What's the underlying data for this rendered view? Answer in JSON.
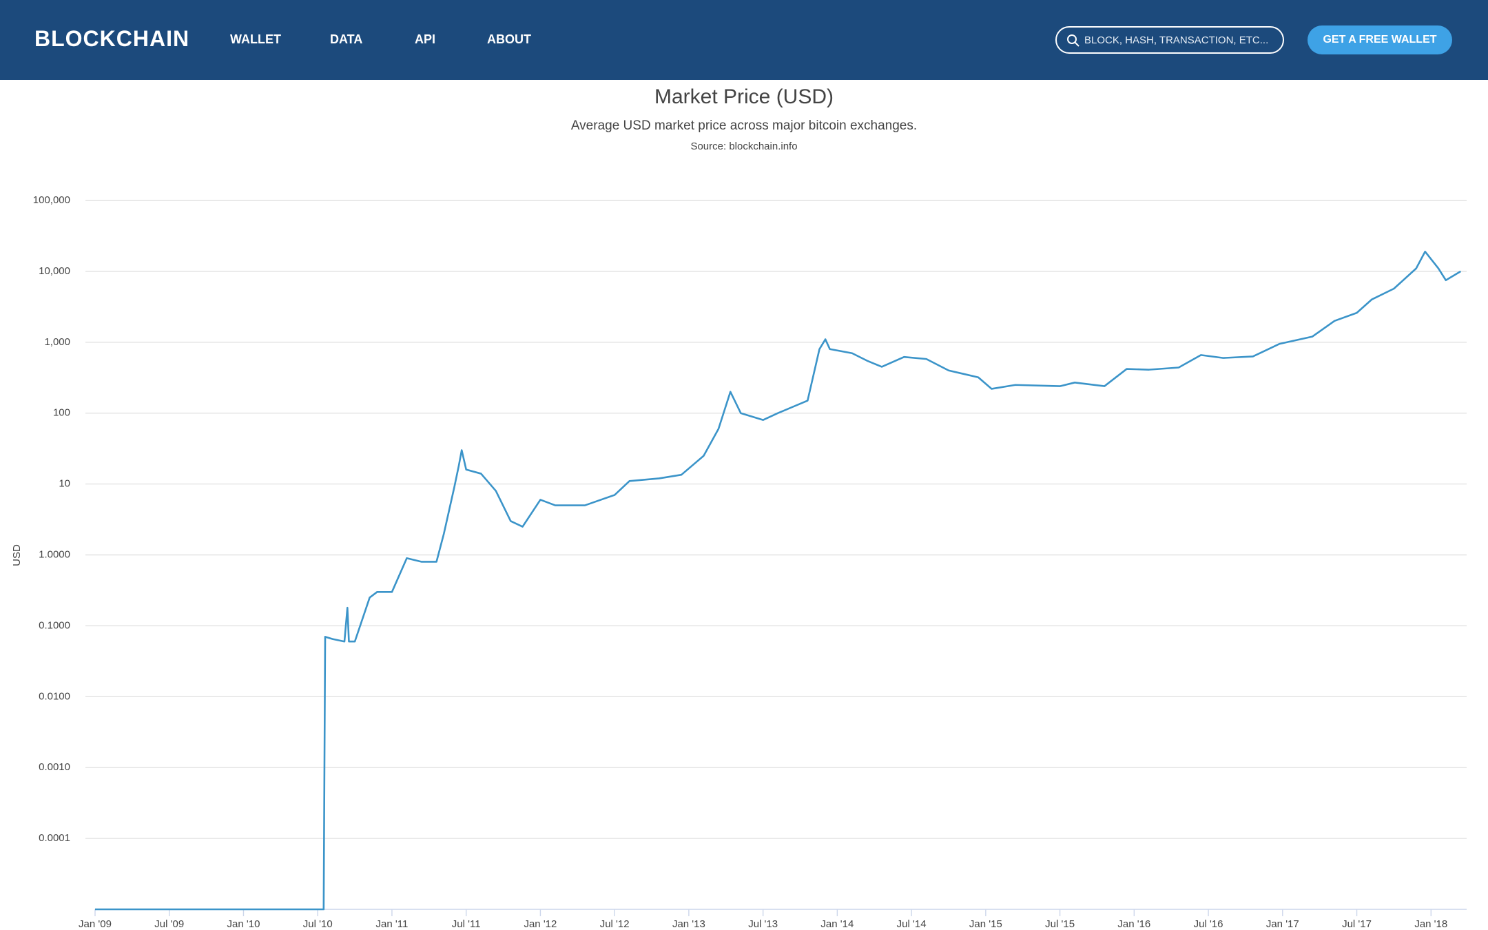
{
  "nav": {
    "logo": "BLOCKCHAIN",
    "links": [
      "WALLET",
      "DATA",
      "API",
      "ABOUT"
    ],
    "search_placeholder": "BLOCK, HASH, TRANSACTION, ETC...",
    "button": "GET A FREE WALLET"
  },
  "chart_data": {
    "type": "line",
    "title": "Market Price (USD)",
    "subtitle": "Average USD market price across major bitcoin exchanges.",
    "source": "Source: blockchain.info",
    "y_label": "USD",
    "log_scale": true,
    "grid": true,
    "color": "#3b94c9",
    "xlim": [
      2009.0,
      2018.24
    ],
    "ylim": [
      1e-05,
      100000
    ],
    "xticks": [
      {
        "value": 2009.0,
        "label": "Jan '09"
      },
      {
        "value": 2009.5,
        "label": "Jul '09"
      },
      {
        "value": 2010.0,
        "label": "Jan '10"
      },
      {
        "value": 2010.5,
        "label": "Jul '10"
      },
      {
        "value": 2011.0,
        "label": "Jan '11"
      },
      {
        "value": 2011.5,
        "label": "Jul '11"
      },
      {
        "value": 2012.0,
        "label": "Jan '12"
      },
      {
        "value": 2012.5,
        "label": "Jul '12"
      },
      {
        "value": 2013.0,
        "label": "Jan '13"
      },
      {
        "value": 2013.5,
        "label": "Jul '13"
      },
      {
        "value": 2014.0,
        "label": "Jan '14"
      },
      {
        "value": 2014.5,
        "label": "Jul '14"
      },
      {
        "value": 2015.0,
        "label": "Jan '15"
      },
      {
        "value": 2015.5,
        "label": "Jul '15"
      },
      {
        "value": 2016.0,
        "label": "Jan '16"
      },
      {
        "value": 2016.5,
        "label": "Jul '16"
      },
      {
        "value": 2017.0,
        "label": "Jan '17"
      },
      {
        "value": 2017.5,
        "label": "Jul '17"
      },
      {
        "value": 2018.0,
        "label": "Jan '18"
      }
    ],
    "yticks": [
      {
        "value": 0.0001,
        "label": "0.0001"
      },
      {
        "value": 0.001,
        "label": "0.0010"
      },
      {
        "value": 0.01,
        "label": "0.0100"
      },
      {
        "value": 0.1,
        "label": "0.1000"
      },
      {
        "value": 1,
        "label": "1.0000"
      },
      10,
      100,
      {
        "value": 1000,
        "label": "1,000"
      },
      {
        "value": 10000,
        "label": "10,000"
      },
      {
        "value": 100000,
        "label": "100,000"
      }
    ],
    "x": [
      2009.0,
      2010.54,
      2010.55,
      2010.6,
      2010.68,
      2010.7,
      2010.71,
      2010.75,
      2010.85,
      2010.9,
      2011.0,
      2011.1,
      2011.2,
      2011.3,
      2011.35,
      2011.42,
      2011.45,
      2011.47,
      2011.5,
      2011.6,
      2011.7,
      2011.8,
      2011.88,
      2012.0,
      2012.1,
      2012.3,
      2012.5,
      2012.6,
      2012.8,
      2012.95,
      2013.1,
      2013.2,
      2013.28,
      2013.35,
      2013.5,
      2013.6,
      2013.8,
      2013.88,
      2013.92,
      2013.95,
      2014.1,
      2014.2,
      2014.3,
      2014.45,
      2014.6,
      2014.75,
      2014.95,
      2015.04,
      2015.2,
      2015.5,
      2015.6,
      2015.8,
      2015.95,
      2016.1,
      2016.3,
      2016.45,
      2016.6,
      2016.8,
      2016.98,
      2017.2,
      2017.35,
      2017.5,
      2017.6,
      2017.75,
      2017.9,
      2017.96,
      2018.05,
      2018.1,
      2018.2
    ],
    "values": [
      1e-05,
      1e-05,
      0.07,
      0.065,
      0.06,
      0.18,
      0.06,
      0.06,
      0.25,
      0.3,
      0.3,
      0.9,
      0.8,
      0.8,
      2,
      9,
      18,
      30,
      16,
      14,
      8,
      3,
      2.5,
      6,
      5,
      5,
      7,
      11,
      12,
      13.5,
      25,
      60,
      200,
      100,
      80,
      100,
      150,
      800,
      1100,
      800,
      700,
      550,
      450,
      620,
      580,
      400,
      320,
      220,
      250,
      240,
      270,
      240,
      420,
      410,
      440,
      660,
      600,
      630,
      950,
      1200,
      2000,
      2600,
      4000,
      5700,
      11000,
      19000,
      11000,
      7500,
      10000
    ]
  }
}
